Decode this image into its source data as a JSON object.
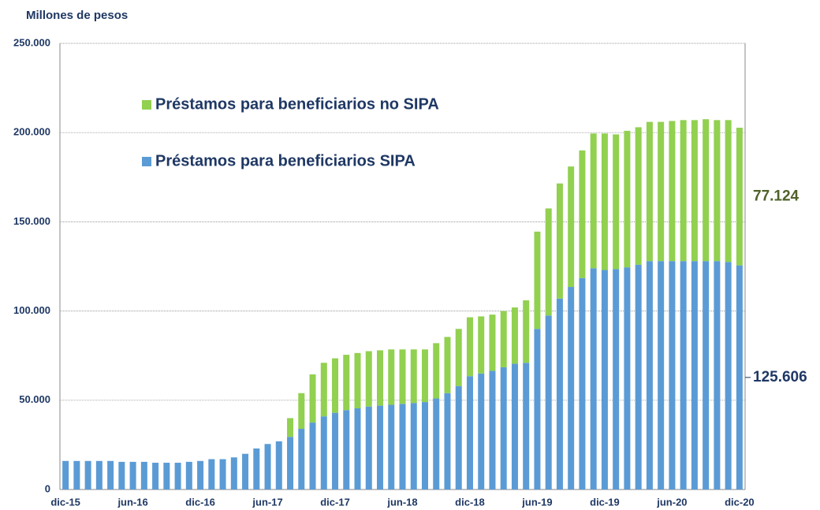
{
  "chart_data": {
    "type": "stacked_bar",
    "y_axis_label": "Millones de pesos",
    "categories": [
      "dic-15",
      null,
      null,
      null,
      null,
      null,
      "jun-16",
      null,
      null,
      null,
      null,
      null,
      "dic-16",
      null,
      null,
      null,
      null,
      null,
      "jun-17",
      null,
      null,
      null,
      null,
      null,
      "dic-17",
      null,
      null,
      null,
      null,
      null,
      "jun-18",
      null,
      null,
      null,
      null,
      null,
      "dic-18",
      null,
      null,
      null,
      null,
      null,
      "jun-19",
      null,
      null,
      null,
      null,
      null,
      "dic-19",
      null,
      null,
      null,
      null,
      null,
      "jun-20",
      null,
      null,
      null,
      null,
      null,
      "dic-20"
    ],
    "series": [
      {
        "name": "Préstamos para beneficiarios SIPA",
        "color": "#5b9bd5",
        "label_color": "#1f3864",
        "values": [
          16000,
          16000,
          16000,
          16000,
          16000,
          15500,
          15500,
          15500,
          15000,
          15000,
          15000,
          15500,
          16000,
          17000,
          17000,
          18000,
          20000,
          23000,
          25500,
          27000,
          29500,
          34000,
          37500,
          41000,
          43000,
          44500,
          45500,
          46500,
          47000,
          47500,
          48000,
          48500,
          49000,
          51000,
          54000,
          58000,
          63500,
          65000,
          66500,
          68500,
          70500,
          71000,
          90000,
          97500,
          107000,
          113500,
          118500,
          124000,
          123000,
          123500,
          124500,
          126000,
          128000,
          128000,
          128000,
          128000,
          128000,
          128000,
          128000,
          127500,
          125606
        ],
        "value_labels": [
          null,
          null,
          null,
          null,
          null,
          null,
          null,
          null,
          null,
          null,
          null,
          null,
          null,
          null,
          null,
          null,
          null,
          null,
          null,
          null,
          null,
          null,
          null,
          null,
          null,
          null,
          null,
          null,
          null,
          null,
          null,
          null,
          null,
          null,
          null,
          null,
          null,
          null,
          null,
          null,
          null,
          null,
          null,
          null,
          null,
          null,
          null,
          null,
          null,
          null,
          null,
          null,
          null,
          null,
          null,
          null,
          null,
          null,
          null,
          null,
          "125.606"
        ]
      },
      {
        "name": "Préstamos para beneficiarios no SIPA",
        "color": "#92d050",
        "label_color": "#4f6228",
        "values": [
          0,
          0,
          0,
          0,
          0,
          0,
          0,
          0,
          0,
          0,
          0,
          0,
          0,
          0,
          0,
          0,
          0,
          0,
          0,
          0,
          10500,
          20000,
          27000,
          30000,
          30500,
          31000,
          31000,
          31000,
          31000,
          31000,
          30500,
          30000,
          29500,
          31000,
          31500,
          32000,
          33000,
          32000,
          31500,
          31500,
          31500,
          35000,
          54500,
          60000,
          64500,
          67500,
          71500,
          75500,
          76500,
          75500,
          76500,
          77000,
          78000,
          78000,
          78500,
          79000,
          79000,
          79500,
          79000,
          79500,
          77124
        ],
        "value_labels": [
          null,
          null,
          null,
          null,
          null,
          null,
          null,
          null,
          null,
          null,
          null,
          null,
          null,
          null,
          null,
          null,
          null,
          null,
          null,
          null,
          null,
          null,
          null,
          null,
          null,
          null,
          null,
          null,
          null,
          null,
          null,
          null,
          null,
          null,
          null,
          null,
          null,
          null,
          null,
          null,
          null,
          null,
          null,
          null,
          null,
          null,
          null,
          null,
          null,
          null,
          null,
          null,
          null,
          null,
          null,
          null,
          null,
          null,
          null,
          null,
          "77.124"
        ]
      }
    ],
    "ylim": [
      0,
      250000
    ],
    "yticks": [
      0,
      {
        "value": 50000,
        "label": "50.000"
      },
      {
        "value": 100000,
        "label": "100.000"
      },
      {
        "value": 150000,
        "label": "150.000"
      },
      {
        "value": 200000,
        "label": "200.000"
      },
      {
        "value": 250000,
        "label": "250.000"
      }
    ],
    "grid": true,
    "legend": "upper left"
  }
}
